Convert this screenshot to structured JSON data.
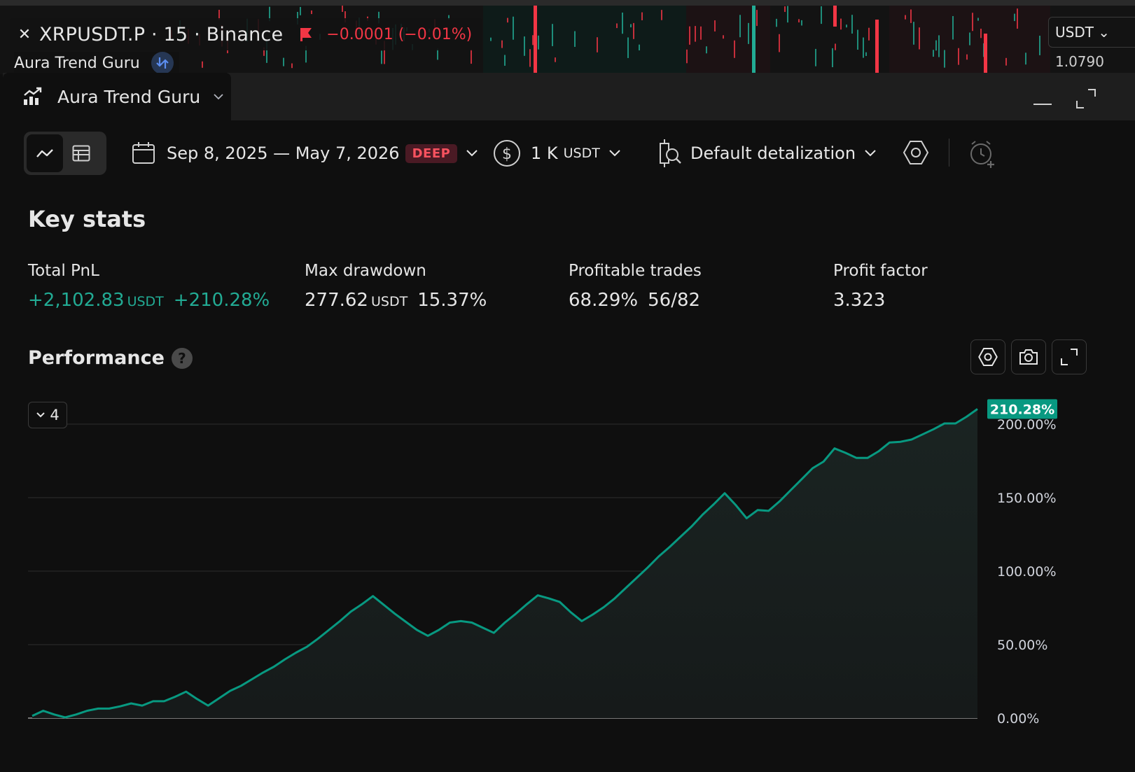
{
  "top_strip": {
    "symbol": "XRPUSDT.P · 15 · Binance",
    "change": "−0.0001 (−0.01%)",
    "indicator_name": "Aura Trend Guru",
    "currency_button": "USDT",
    "price_label": "1.0790"
  },
  "panel": {
    "tab_title": "Aura Trend Guru"
  },
  "toolbar": {
    "date_range": "Sep 8, 2025 — May 7, 2026",
    "deep_badge": "DEEP",
    "capital_amount": "1 K",
    "capital_unit": "USDT",
    "detalization": "Default detalization"
  },
  "key_stats": {
    "title": "Key stats",
    "total_pnl": {
      "label": "Total PnL",
      "value": "+2,102.83",
      "unit": "USDT",
      "percent": "+210.28%"
    },
    "max_drawdown": {
      "label": "Max drawdown",
      "value": "277.62",
      "unit": "USDT",
      "percent": "15.37%"
    },
    "profitable_trades": {
      "label": "Profitable trades",
      "percent": "68.29%",
      "ratio": "56/82"
    },
    "profit_factor": {
      "label": "Profit factor",
      "value": "3.323"
    }
  },
  "performance": {
    "title": "Performance",
    "help_label": "?",
    "series_toggle_count": "4"
  },
  "colors": {
    "line": "#089981",
    "positive": "#22ab94",
    "negative": "#f23645",
    "badge_bg": "#089981"
  },
  "chart_data": {
    "type": "area",
    "ylim": [
      -5,
      215
    ],
    "y_ticks": [
      "0.00%",
      "50.00%",
      "100.00%",
      "150.00%",
      "200.00%"
    ],
    "y_tick_values": [
      0,
      50,
      100,
      150,
      200
    ],
    "last_value_label": "210.28%",
    "series": [
      {
        "values": [
          1.5,
          5,
          2.5,
          0.5,
          2.5,
          5,
          6.5,
          6.5,
          8,
          10,
          8.5,
          11.5,
          11.5,
          14.5,
          18,
          13,
          8.5,
          13.5,
          18.5,
          22,
          26.5,
          31,
          35,
          40,
          44.5,
          48.5,
          54,
          60,
          66,
          72.5,
          77.5,
          83,
          77,
          71,
          65.5,
          60,
          56,
          60,
          65,
          66,
          65,
          61.5,
          58,
          65,
          71,
          77.5,
          83.5,
          81.5,
          79,
          72,
          66,
          70.5,
          75.5,
          81.5,
          88.5,
          95.5,
          102.5,
          110,
          116.5,
          123.5,
          130.5,
          138.5,
          145.5,
          153,
          145,
          136,
          141.5,
          141,
          147.5,
          155,
          162.5,
          170,
          174.5,
          183.5,
          180.5,
          177,
          177,
          181.5,
          187.5,
          188,
          189.5,
          193,
          196.5,
          200.5,
          200.5,
          205,
          210.28
        ]
      }
    ]
  }
}
